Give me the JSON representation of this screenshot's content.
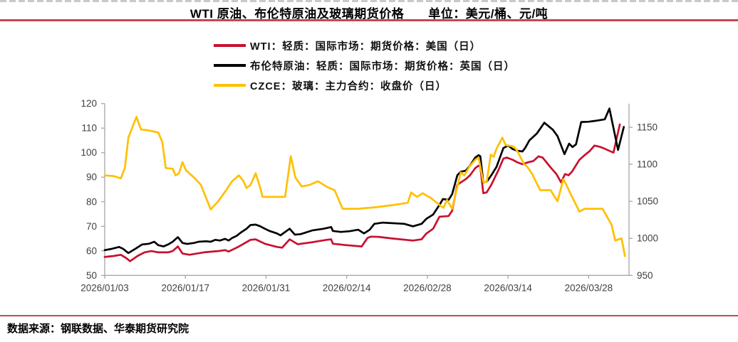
{
  "title": {
    "main": "WTI 原油、布伦特原油及玻璃期货价格",
    "unit": "单位：美元/桶、元/吨"
  },
  "legend": [
    {
      "label": "WTI：轻质：国际市场：期货价格：美国（日）",
      "color": "#c8102e"
    },
    {
      "label": "布伦特原油：轻质：国际市场：期货价格：英国（日）",
      "color": "#000000"
    },
    {
      "label": "CZCE：玻璃：主力合约：收盘价（日）",
      "color": "#ffc000"
    }
  ],
  "footer": {
    "source": "数据来源：钢联数据、华泰期货研究院"
  },
  "colors": {
    "wti": "#c8102e",
    "brent": "#000000",
    "czce": "#ffc000",
    "rule": "#c04a52",
    "axis_line": "#a6a6a6",
    "axis_text": "#404040"
  },
  "chart_data": {
    "type": "line",
    "title": "WTI 原油、布伦特原油及玻璃期货价格",
    "unit_label": "单位：美元/桶、元/吨",
    "x_axis": {
      "tick_labels": [
        "2026/01/03",
        "2026/01/17",
        "2026/01/31",
        "2026/02/14",
        "2026/02/28",
        "2026/03/14",
        "2026/03/28"
      ],
      "tick_days": [
        0,
        14,
        28,
        42,
        56,
        70,
        84
      ],
      "domain_days": [
        0,
        91
      ],
      "start_date": "2026/01/03"
    },
    "left_axis": {
      "min": 50,
      "max": 120,
      "ticks": [
        50,
        60,
        70,
        80,
        90,
        100,
        110,
        120
      ],
      "label_unit": "美元/桶"
    },
    "right_axis": {
      "min": 950,
      "max_tick": 1150,
      "ticks": [
        950,
        1000,
        1050,
        1100,
        1150
      ],
      "label_unit": "元/吨"
    },
    "grid": false,
    "legend_position": "top-center",
    "series": [
      {
        "name": "WTI：轻质：国际市场：期货价格：美国（日）",
        "axis": "left",
        "color": "#c8102e",
        "points": [
          [
            0,
            57.5
          ],
          [
            1.6,
            57.9
          ],
          [
            2.8,
            58.4
          ],
          [
            3.7,
            57.1
          ],
          [
            4.4,
            55.8
          ],
          [
            5.7,
            57.9
          ],
          [
            6.9,
            59.4
          ],
          [
            8.1,
            59.9
          ],
          [
            9.3,
            59.4
          ],
          [
            11,
            59.4
          ],
          [
            11.8,
            59.9
          ],
          [
            12.7,
            61.8
          ],
          [
            13.5,
            58.9
          ],
          [
            14.7,
            58.4
          ],
          [
            17.2,
            59.4
          ],
          [
            19.7,
            59.9
          ],
          [
            20.9,
            60.3
          ],
          [
            21.5,
            59.7
          ],
          [
            22.9,
            61.3
          ],
          [
            23.7,
            62.3
          ],
          [
            25.3,
            64.5
          ],
          [
            26.2,
            64.7
          ],
          [
            27.8,
            62.9
          ],
          [
            29.9,
            61.6
          ],
          [
            30.8,
            61.3
          ],
          [
            32.1,
            64.7
          ],
          [
            33.5,
            62.7
          ],
          [
            36,
            63.5
          ],
          [
            38.5,
            64.5
          ],
          [
            39.3,
            64.7
          ],
          [
            39.6,
            62.9
          ],
          [
            42,
            62.3
          ],
          [
            44.6,
            61.8
          ],
          [
            45.6,
            65.2
          ],
          [
            46.2,
            65.8
          ],
          [
            47.5,
            65.7
          ],
          [
            50,
            65.0
          ],
          [
            53.5,
            64.2
          ],
          [
            55,
            64.7
          ],
          [
            55.8,
            67.0
          ],
          [
            57,
            69.0
          ],
          [
            58.1,
            73.9
          ],
          [
            59.7,
            74.2
          ],
          [
            60.3,
            76.3
          ],
          [
            61.2,
            86.9
          ],
          [
            62.7,
            89.3
          ],
          [
            63.4,
            90.8
          ],
          [
            64.3,
            93.7
          ],
          [
            64.9,
            94.7
          ],
          [
            65.2,
            94.2
          ],
          [
            65.7,
            83.5
          ],
          [
            66.3,
            83.8
          ],
          [
            67.1,
            86.9
          ],
          [
            68.3,
            92.7
          ],
          [
            69.2,
            97.6
          ],
          [
            69.8,
            98.0
          ],
          [
            70.8,
            97.1
          ],
          [
            71.6,
            96.1
          ],
          [
            72.5,
            95.3
          ],
          [
            73.5,
            96.1
          ],
          [
            74.4,
            96.6
          ],
          [
            75.3,
            98.5
          ],
          [
            76,
            98.0
          ],
          [
            76.5,
            96.6
          ],
          [
            77.5,
            93.7
          ],
          [
            78.4,
            91.3
          ],
          [
            79.2,
            87.9
          ],
          [
            79.9,
            91.3
          ],
          [
            80.5,
            90.8
          ],
          [
            81.1,
            92.2
          ],
          [
            82.4,
            97.1
          ],
          [
            83.3,
            99.0
          ],
          [
            84.2,
            100.7
          ],
          [
            85,
            102.9
          ],
          [
            85.9,
            102.4
          ],
          [
            86.5,
            101.9
          ],
          [
            88.3,
            100.0
          ],
          [
            89.4,
            111.5
          ]
        ]
      },
      {
        "name": "布伦特原油：轻质：国际市场：期货价格：英国（日）",
        "axis": "left",
        "color": "#000000",
        "points": [
          [
            0,
            60.3
          ],
          [
            1.2,
            60.8
          ],
          [
            2.5,
            61.6
          ],
          [
            3.2,
            60.8
          ],
          [
            4.1,
            59.1
          ],
          [
            5.3,
            60.8
          ],
          [
            6.5,
            62.6
          ],
          [
            7.7,
            62.9
          ],
          [
            8.6,
            63.7
          ],
          [
            9.3,
            62.3
          ],
          [
            10.2,
            61.8
          ],
          [
            11,
            62.6
          ],
          [
            11.8,
            63.7
          ],
          [
            12.7,
            65.6
          ],
          [
            13.5,
            63.2
          ],
          [
            14.3,
            62.8
          ],
          [
            15.5,
            63.2
          ],
          [
            16.3,
            63.7
          ],
          [
            17.6,
            63.9
          ],
          [
            18.4,
            63.7
          ],
          [
            19.2,
            64.5
          ],
          [
            20,
            64.2
          ],
          [
            20.9,
            64.9
          ],
          [
            21.5,
            64.2
          ],
          [
            22.1,
            65.2
          ],
          [
            22.9,
            66.1
          ],
          [
            23.7,
            67.6
          ],
          [
            24.6,
            69.0
          ],
          [
            25.3,
            70.5
          ],
          [
            26.2,
            70.7
          ],
          [
            27,
            70.0
          ],
          [
            27.8,
            69.0
          ],
          [
            28.6,
            68.1
          ],
          [
            29.9,
            67.1
          ],
          [
            30.5,
            66.3
          ],
          [
            32.1,
            69.0
          ],
          [
            33,
            66.6
          ],
          [
            34,
            66.8
          ],
          [
            36,
            68.3
          ],
          [
            38,
            69.0
          ],
          [
            39.3,
            69.7
          ],
          [
            39.6,
            68.1
          ],
          [
            41,
            67.7
          ],
          [
            42.5,
            68.0
          ],
          [
            44,
            68.6
          ],
          [
            45,
            67.1
          ],
          [
            46,
            68.6
          ],
          [
            46.8,
            71.0
          ],
          [
            48.3,
            71.5
          ],
          [
            52,
            71.0
          ],
          [
            53.5,
            70.0
          ],
          [
            55,
            71.0
          ],
          [
            55.8,
            73.0
          ],
          [
            57,
            74.8
          ],
          [
            58.1,
            78.7
          ],
          [
            58.7,
            81.1
          ],
          [
            59.7,
            80.8
          ],
          [
            60.3,
            83.1
          ],
          [
            61.2,
            90.8
          ],
          [
            61.8,
            92.2
          ],
          [
            62.7,
            92.7
          ],
          [
            63.4,
            94.7
          ],
          [
            64.3,
            98.0
          ],
          [
            64.9,
            99.0
          ],
          [
            65.2,
            98.5
          ],
          [
            65.7,
            87.9
          ],
          [
            66.3,
            88.1
          ],
          [
            67.1,
            90.8
          ],
          [
            68,
            94.2
          ],
          [
            69.2,
            101.9
          ],
          [
            70,
            102.9
          ],
          [
            70.8,
            101.5
          ],
          [
            71.6,
            100.8
          ],
          [
            72.5,
            100.5
          ],
          [
            73,
            102.0
          ],
          [
            73.7,
            105.0
          ],
          [
            75,
            107.8
          ],
          [
            76.3,
            112.2
          ],
          [
            77.8,
            109.3
          ],
          [
            78.6,
            106.7
          ],
          [
            79.8,
            99.4
          ],
          [
            80.6,
            103.7
          ],
          [
            81.2,
            102.3
          ],
          [
            81.8,
            103.4
          ],
          [
            82.7,
            112.5
          ],
          [
            84,
            112.6
          ],
          [
            85.2,
            113.0
          ],
          [
            86.8,
            113.6
          ],
          [
            87.6,
            118.0
          ],
          [
            89.1,
            101.1
          ],
          [
            90.1,
            110.5
          ]
        ]
      },
      {
        "name": "CZCE：玻璃：主力合约：收盘价（日）",
        "axis": "right",
        "color": "#ffc000",
        "points": [
          [
            0,
            1085
          ],
          [
            1.6,
            1084
          ],
          [
            2.8,
            1081
          ],
          [
            3.5,
            1095
          ],
          [
            4.1,
            1136
          ],
          [
            5.5,
            1164
          ],
          [
            6.3,
            1147
          ],
          [
            7.5,
            1146
          ],
          [
            9.3,
            1143
          ],
          [
            10,
            1130
          ],
          [
            10.6,
            1095
          ],
          [
            11.8,
            1094
          ],
          [
            12.3,
            1085
          ],
          [
            12.9,
            1088
          ],
          [
            13.5,
            1103
          ],
          [
            14.1,
            1092
          ],
          [
            15.5,
            1082
          ],
          [
            16.7,
            1072
          ],
          [
            18.4,
            1039
          ],
          [
            19.7,
            1050
          ],
          [
            20.9,
            1063
          ],
          [
            22.1,
            1077
          ],
          [
            23.3,
            1085
          ],
          [
            24.1,
            1077
          ],
          [
            24.6,
            1068
          ],
          [
            25.3,
            1072
          ],
          [
            26.2,
            1088
          ],
          [
            27,
            1068
          ],
          [
            27.4,
            1056
          ],
          [
            29.9,
            1056
          ],
          [
            31.3,
            1056
          ],
          [
            32.3,
            1111
          ],
          [
            33.1,
            1082
          ],
          [
            34.2,
            1070
          ],
          [
            35.5,
            1072
          ],
          [
            37,
            1077
          ],
          [
            38.7,
            1069
          ],
          [
            39.9,
            1065
          ],
          [
            41.3,
            1040
          ],
          [
            44,
            1040
          ],
          [
            47,
            1042
          ],
          [
            50,
            1045
          ],
          [
            52.6,
            1048
          ],
          [
            53.2,
            1062
          ],
          [
            54.2,
            1056
          ],
          [
            55.2,
            1061
          ],
          [
            55.8,
            1058
          ],
          [
            56.5,
            1055
          ],
          [
            58.8,
            1041
          ],
          [
            59.4,
            1052
          ],
          [
            60.3,
            1040
          ],
          [
            61.8,
            1089
          ],
          [
            62.4,
            1085
          ],
          [
            63.4,
            1098
          ],
          [
            64.3,
            1106
          ],
          [
            64.9,
            1109
          ],
          [
            65.7,
            1076
          ],
          [
            66.3,
            1076
          ],
          [
            67,
            1113
          ],
          [
            67.5,
            1110
          ],
          [
            68,
            1121
          ],
          [
            69,
            1136
          ],
          [
            69.6,
            1126
          ],
          [
            71,
            1124
          ],
          [
            71.6,
            1118
          ],
          [
            72.8,
            1100
          ],
          [
            73.3,
            1097
          ],
          [
            74.2,
            1087
          ],
          [
            75,
            1074
          ],
          [
            75.6,
            1065
          ],
          [
            77.4,
            1065
          ],
          [
            78.1,
            1056
          ],
          [
            78.6,
            1050
          ],
          [
            79.6,
            1080
          ],
          [
            80.2,
            1071
          ],
          [
            80.8,
            1061
          ],
          [
            82.4,
            1036
          ],
          [
            83.3,
            1040
          ],
          [
            86.4,
            1040
          ],
          [
            87,
            1032
          ],
          [
            88,
            1018
          ],
          [
            88.6,
            997
          ],
          [
            89.7,
            1000
          ],
          [
            90.3,
            976
          ]
        ]
      }
    ]
  }
}
